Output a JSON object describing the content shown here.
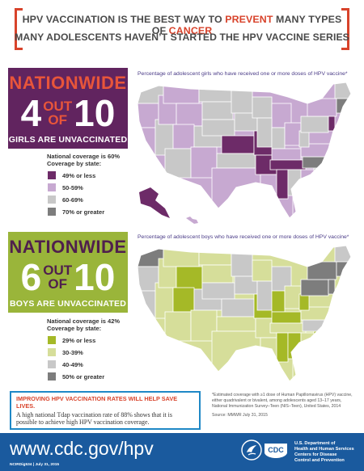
{
  "banner": {
    "line1_a": "HPV VACCINATION IS THE BEST WAY TO ",
    "line1_b": "PREVENT",
    "line1_c": " MANY TYPES OF ",
    "line1_d": "CANCER",
    "line2": "MANY ADOLESCENTS HAVEN’T STARTED THE HPV VACCINE SERIES"
  },
  "girls": {
    "nationwide": "NATIONWIDE",
    "num": "4",
    "out": "OUT",
    "of": "OF",
    "total": "10",
    "caption": "GIRLS ARE UNVACCINATED",
    "map_title": "Percentage of adolescent girls who have received one or more doses of HPV vaccine*",
    "coverage": "National coverage is 60%",
    "by_state": "Coverage by state:",
    "legend": [
      {
        "label": "49% or less",
        "color": "#6d2b68"
      },
      {
        "label": "50-59%",
        "color": "#c7a9d1"
      },
      {
        "label": "60-69%",
        "color": "#c8c8c8"
      },
      {
        "label": "70% or greater",
        "color": "#7d7d7d"
      }
    ]
  },
  "boys": {
    "nationwide": "NATIONWIDE",
    "num": "6",
    "out": "OUT",
    "of": "OF",
    "total": "10",
    "caption": "BOYS ARE UNVACCINATED",
    "map_title": "Percentage of adolescent boys who have received one or more doses of HPV vaccine*",
    "coverage": "National coverage is 42%",
    "by_state": "Coverage by state:",
    "legend": [
      {
        "label": "29% or less",
        "color": "#a5b927"
      },
      {
        "label": "30-39%",
        "color": "#d6de9a"
      },
      {
        "label": "40-49%",
        "color": "#c8c8c8"
      },
      {
        "label": "50% or greater",
        "color": "#7d7d7d"
      }
    ]
  },
  "cta": {
    "head": "IMPROVING HPV VACCINATION RATES WILL HELP SAVE LIVES.",
    "body": "A high national Tdap vaccination rate of 88% shows that it is possible to achieve high HPV vaccination coverage."
  },
  "footnote": {
    "text": "*Estimated coverage with ≥1 dose of Human Papillomavirus (HPV) vaccine, either quadrivalent or bivalent, among adolescents aged 13–17 years, National Immunization Survey–Teen (NIS–Teen), United States, 2014",
    "source": "Source: MMWR July 31, 2015"
  },
  "footer": {
    "url": "www.cdc.gov/hpv",
    "code": "NCIRDig534 | July 31, 2015",
    "logo": "CDC",
    "dept1": "U.S. Department of",
    "dept2": "Health and Human Services",
    "dept3": "Centers for Disease",
    "dept4": "Control and Prevention"
  },
  "colors": {
    "accent_red": "#d8432b",
    "girls_purple": "#61245f",
    "boys_green": "#9ab53a",
    "footer_blue": "#1a5a9e"
  }
}
